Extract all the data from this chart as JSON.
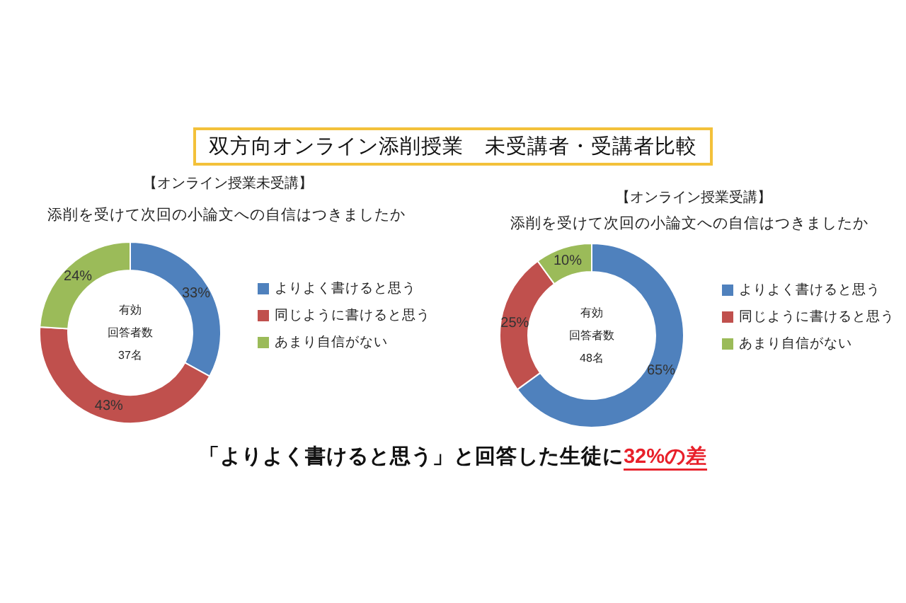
{
  "chart_data": [
    {
      "type": "other",
      "title": "双方向オンライン添削授業　未受講者・受講者比較"
    },
    {
      "type": "donut",
      "title": "【オンライン授業未受講】",
      "subtitle": "添削を受けて次回の小論文への自信はつきましたか",
      "categories": [
        "よりよく書けると思う",
        "同じように書けると思う",
        "あまり自信がない"
      ],
      "values": [
        33,
        43,
        24
      ],
      "colors": [
        "#4f81bd",
        "#c0504d",
        "#9bbb59"
      ],
      "value_labels": [
        "33%",
        "43%",
        "24%"
      ],
      "annotations": [
        "有効",
        "回答者数",
        "37名"
      ],
      "legend": "right"
    },
    {
      "type": "donut",
      "title": "【オンライン授業受講】",
      "subtitle": "添削を受けて次回の小論文への自信はつきましたか",
      "categories": [
        "よりよく書けると思う",
        "同じように書けると思う",
        "あまり自信がない"
      ],
      "values": [
        65,
        25,
        10
      ],
      "colors": [
        "#4f81bd",
        "#c0504d",
        "#9bbb59"
      ],
      "value_labels": [
        "65%",
        "25%",
        "10%"
      ],
      "annotations": [
        "有効",
        "回答者数",
        "48名"
      ],
      "legend": "right"
    },
    {
      "type": "other",
      "annotations": [
        "「よりよく書けると思う」と回答した生徒に",
        "32%の差"
      ]
    }
  ]
}
